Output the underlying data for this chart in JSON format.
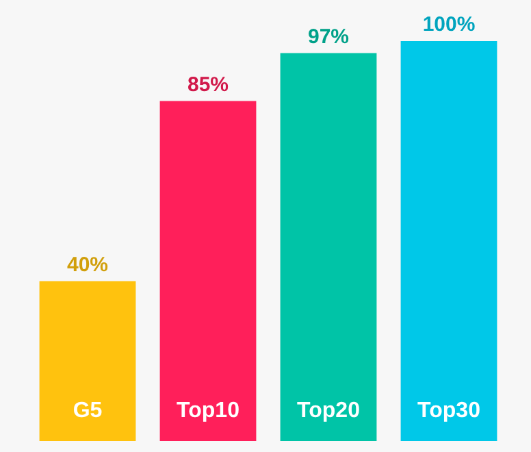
{
  "chart_data": {
    "type": "bar",
    "categories": [
      "G5",
      "Top10",
      "Top20",
      "Top30"
    ],
    "values": [
      40,
      85,
      97,
      100
    ],
    "value_labels": [
      "40%",
      "85%",
      "97%",
      "100%"
    ],
    "colors": [
      "#ffc20e",
      "#ff1f5a",
      "#00c4a7",
      "#00c8e8"
    ]
  }
}
